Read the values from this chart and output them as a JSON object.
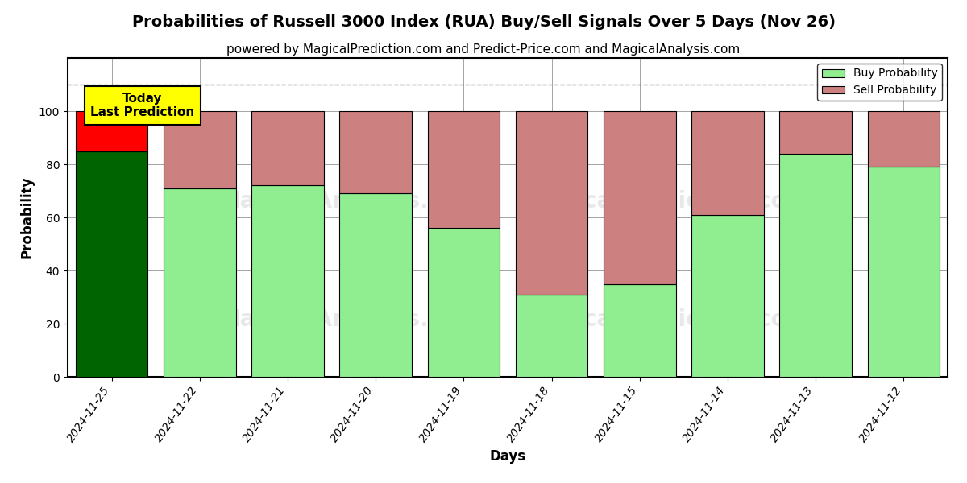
{
  "title": "Probabilities of Russell 3000 Index (RUA) Buy/Sell Signals Over 5 Days (Nov 26)",
  "subtitle": "powered by MagicalPrediction.com and Predict-Price.com and MagicalAnalysis.com",
  "xlabel": "Days",
  "ylabel": "Probability",
  "categories": [
    "2024-11-25",
    "2024-11-22",
    "2024-11-21",
    "2024-11-20",
    "2024-11-19",
    "2024-11-18",
    "2024-11-15",
    "2024-11-14",
    "2024-11-13",
    "2024-11-12"
  ],
  "buy_values": [
    85,
    71,
    72,
    69,
    56,
    31,
    35,
    61,
    84,
    79
  ],
  "sell_values": [
    15,
    29,
    28,
    31,
    44,
    69,
    65,
    39,
    16,
    21
  ],
  "today_buy_color": "#006400",
  "today_sell_color": "#FF0000",
  "buy_color": "#90EE90",
  "sell_color": "#CD8080",
  "today_label_bg": "#FFFF00",
  "today_label_text": "Today\nLast Prediction",
  "legend_buy": "Buy Probability",
  "legend_sell": "Sell Probability",
  "ylim": [
    0,
    120
  ],
  "dashed_line_y": 110,
  "background_color": "#FFFFFF",
  "title_fontsize": 14,
  "subtitle_fontsize": 11,
  "axis_label_fontsize": 12,
  "tick_fontsize": 10
}
